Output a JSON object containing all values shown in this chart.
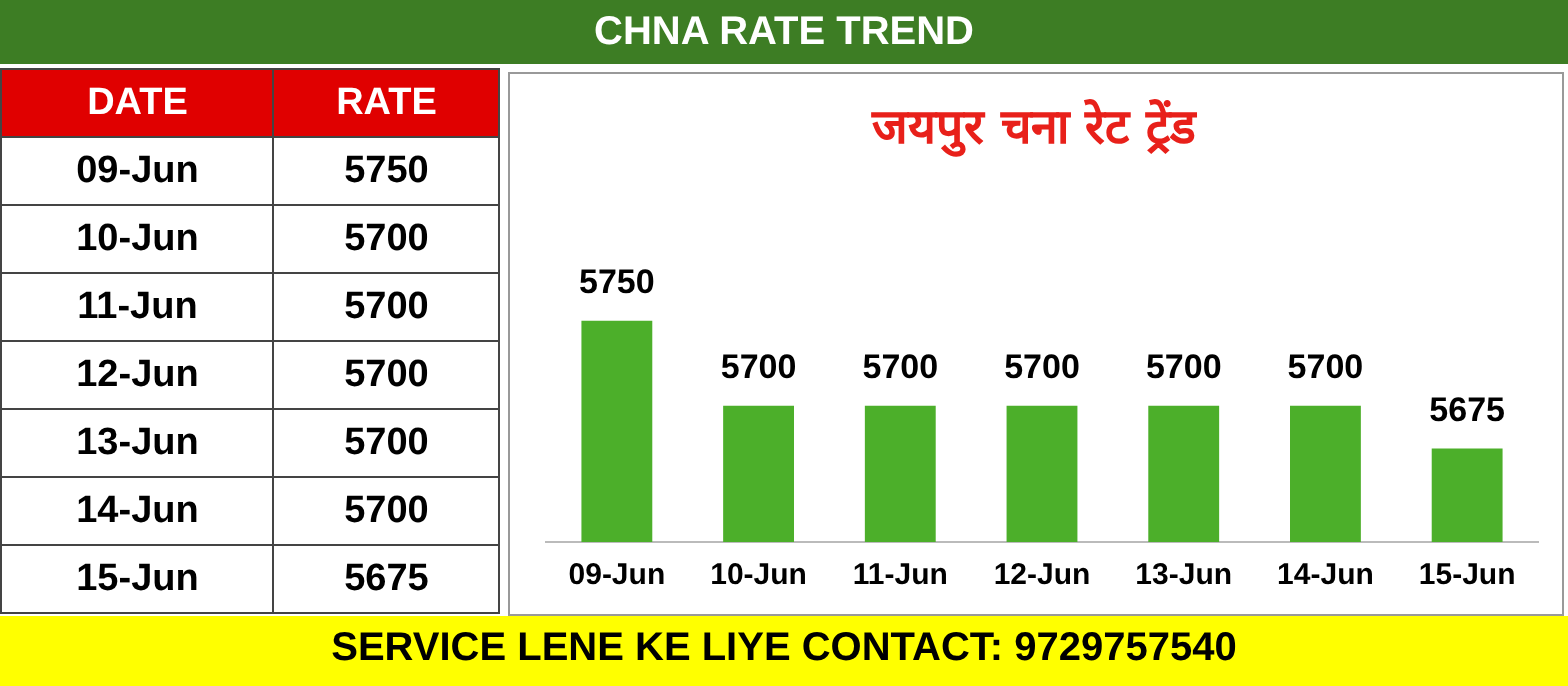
{
  "chart_data": {
    "type": "bar",
    "title": "CHNA RATE TREND",
    "subtitle": "जयपुर चना रेट ट्रेंड",
    "categories": [
      "09-Jun",
      "10-Jun",
      "11-Jun",
      "12-Jun",
      "13-Jun",
      "14-Jun",
      "15-Jun"
    ],
    "values": [
      5750,
      5700,
      5700,
      5700,
      5700,
      5700,
      5675
    ],
    "value_labels": [
      "5750",
      "5700",
      "5700",
      "5700",
      "5700",
      "5700",
      "5675"
    ],
    "color": "#4caf2a",
    "tick_labels": "x",
    "grid": false,
    "legend": false,
    "data_labels": true,
    "annotations": [
      "DATE",
      "RATE",
      "SERVICE LENE KE LIYE CONTACT: 9729757540"
    ]
  }
}
